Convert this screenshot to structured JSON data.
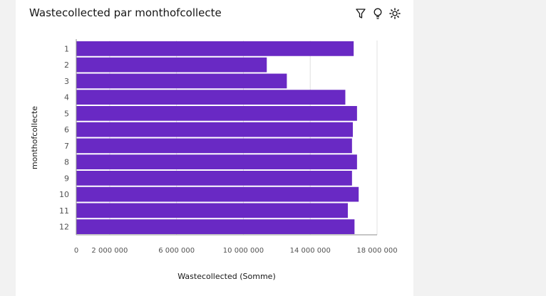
{
  "widget": {
    "title": "Wastecollected par monthofcollecte",
    "toolbar_icons": [
      "filter-icon",
      "lightbulb-icon",
      "settings-icon"
    ]
  },
  "colors": {
    "bar": "#6929c4",
    "grid": "#e0e0e0",
    "axis": "#8d8d8d",
    "text": "#525252"
  },
  "chart_data": {
    "type": "bar",
    "orientation": "horizontal",
    "title": "Wastecollected par monthofcollecte",
    "xlabel": "Wastecollected (Somme)",
    "ylabel": "monthofcollecte",
    "categories": [
      "1",
      "2",
      "3",
      "4",
      "5",
      "6",
      "7",
      "8",
      "9",
      "10",
      "11",
      "12"
    ],
    "values": [
      16600000,
      11400000,
      12600000,
      16100000,
      16800000,
      16550000,
      16500000,
      16800000,
      16500000,
      16900000,
      16250000,
      16650000
    ],
    "xlim": [
      0,
      18000000
    ],
    "x_ticks": [
      0,
      2000000,
      6000000,
      10000000,
      14000000,
      18000000
    ],
    "x_tick_labels": [
      "0",
      "2 000 000",
      "6 000 000",
      "10 000 000",
      "14 000 000",
      "18 000 000"
    ],
    "grid": true,
    "legend": "none"
  }
}
